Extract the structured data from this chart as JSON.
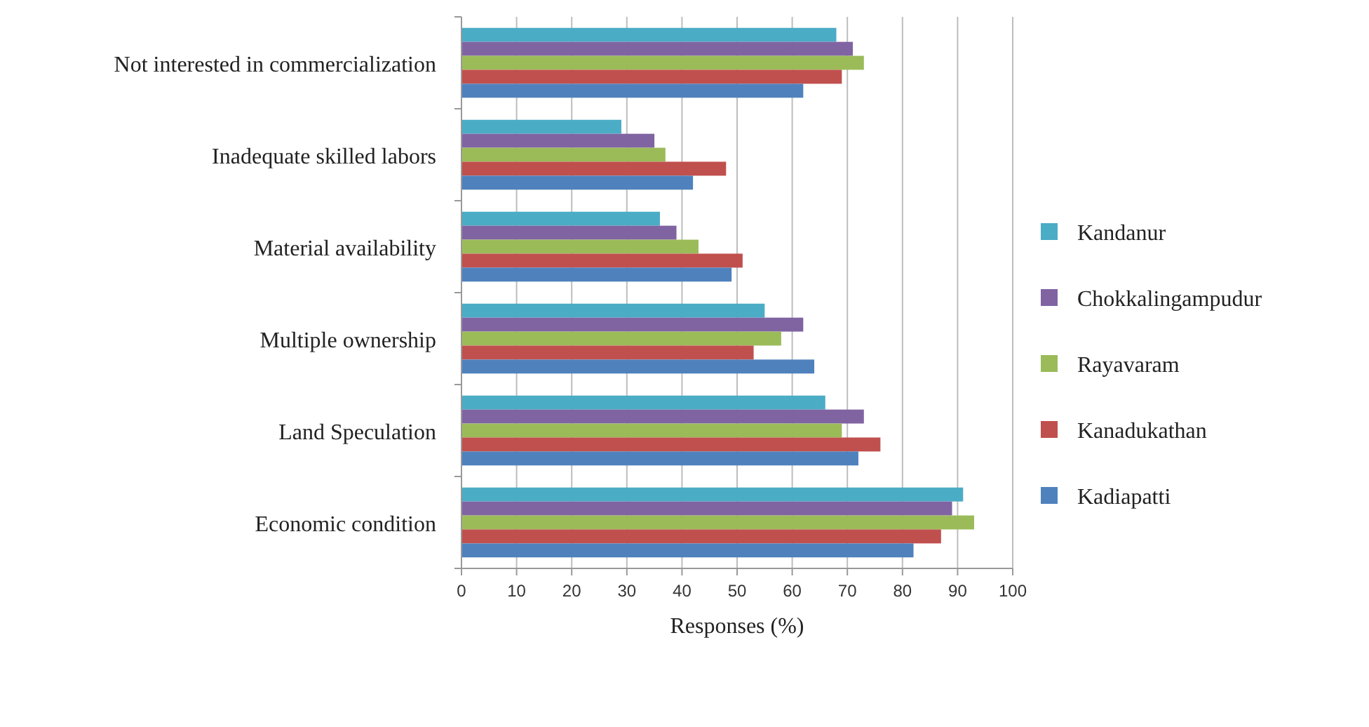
{
  "chart_data": {
    "type": "bar",
    "orientation": "horizontal",
    "xlabel": "Responses (%)",
    "categories": [
      "Not interested in commercialization",
      "Inadequate skilled labors",
      "Material availability",
      "Multiple ownership",
      "Land Speculation",
      "Economic condition"
    ],
    "series": [
      {
        "name": "Kandanur",
        "color": "#4bacc6",
        "values": [
          68,
          29,
          36,
          55,
          66,
          91
        ]
      },
      {
        "name": "Chokkalingampudur",
        "color": "#8064a2",
        "values": [
          71,
          35,
          39,
          62,
          73,
          89
        ]
      },
      {
        "name": "Rayavaram",
        "color": "#9bbb59",
        "values": [
          73,
          37,
          43,
          58,
          69,
          93
        ]
      },
      {
        "name": "Kanadukathan",
        "color": "#c0504d",
        "values": [
          69,
          48,
          51,
          53,
          76,
          87
        ]
      },
      {
        "name": "Kadiapatti",
        "color": "#4f81bd",
        "values": [
          62,
          42,
          49,
          64,
          72,
          82
        ]
      }
    ],
    "xlim": [
      0,
      100
    ],
    "xticks": [
      0,
      10,
      20,
      30,
      40,
      50,
      60,
      70,
      80,
      90,
      100
    ],
    "grid": "x",
    "legend": "right"
  }
}
